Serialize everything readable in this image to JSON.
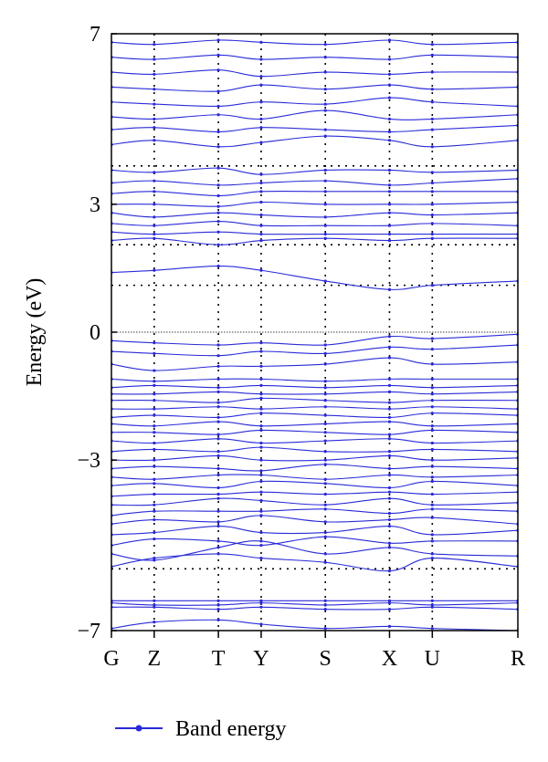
{
  "chart_data": {
    "type": "line",
    "title": "",
    "xlabel": "",
    "ylabel": "Energy (eV)",
    "ylim": [
      -7,
      7
    ],
    "y_ticks": [
      {
        "value": 7,
        "label": "7"
      },
      {
        "value": 3,
        "label": "3"
      },
      {
        "value": 0,
        "label": "0"
      },
      {
        "value": -3,
        "label": "−3"
      },
      {
        "value": -7,
        "label": "−7"
      }
    ],
    "k_points": [
      "G",
      "Z",
      "T",
      "Y",
      "S",
      "X",
      "U",
      "R"
    ],
    "k_positions": [
      0,
      1,
      2.5,
      3.5,
      5,
      6.5,
      7.5,
      9.5
    ],
    "fermi_level": 0,
    "dotted_levels": [
      3.9,
      2.05,
      1.1,
      -5.55
    ],
    "series": [
      {
        "name": "Band energy",
        "color": "#2a2ad8"
      }
    ],
    "legend_position": "bottom-left",
    "bands": [
      [
        -6.95,
        -6.8,
        -6.75,
        -6.85,
        -6.95,
        -6.9,
        -6.95,
        -7.0
      ],
      [
        -6.45,
        -6.45,
        -6.5,
        -6.45,
        -6.5,
        -6.5,
        -6.45,
        -6.5
      ],
      [
        -6.35,
        -6.4,
        -6.4,
        -6.35,
        -6.4,
        -6.35,
        -6.4,
        -6.35
      ],
      [
        -6.3,
        -6.3,
        -6.3,
        -6.3,
        -6.3,
        -6.3,
        -6.3,
        -6.3
      ],
      [
        -5.5,
        -5.3,
        -5.2,
        -5.3,
        -5.4,
        -5.6,
        -5.3,
        -5.5
      ],
      [
        -5.2,
        -5.35,
        -5.05,
        -4.9,
        -5.2,
        -5.05,
        -5.2,
        -5.25
      ],
      [
        -5.0,
        -4.85,
        -4.9,
        -5.0,
        -4.8,
        -4.95,
        -4.9,
        -4.9
      ],
      [
        -4.75,
        -4.7,
        -4.55,
        -4.7,
        -4.7,
        -4.55,
        -4.75,
        -4.65
      ],
      [
        -4.5,
        -4.4,
        -4.45,
        -4.3,
        -4.45,
        -4.4,
        -4.35,
        -4.5
      ],
      [
        -4.3,
        -4.2,
        -4.2,
        -4.2,
        -4.15,
        -4.25,
        -4.15,
        -4.2
      ],
      [
        -4.05,
        -4.05,
        -3.9,
        -3.95,
        -4.05,
        -3.9,
        -4.05,
        -4.0
      ],
      [
        -3.85,
        -3.8,
        -3.8,
        -3.75,
        -3.8,
        -3.75,
        -3.8,
        -3.75
      ],
      [
        -3.6,
        -3.55,
        -3.65,
        -3.5,
        -3.55,
        -3.65,
        -3.5,
        -3.6
      ],
      [
        -3.4,
        -3.45,
        -3.35,
        -3.35,
        -3.45,
        -3.35,
        -3.4,
        -3.35
      ],
      [
        -3.2,
        -3.15,
        -3.2,
        -3.25,
        -3.1,
        -3.2,
        -3.15,
        -3.2
      ],
      [
        -3.0,
        -3.0,
        -2.9,
        -3.0,
        -3.0,
        -2.9,
        -3.0,
        -2.95
      ],
      [
        -2.8,
        -2.75,
        -2.8,
        -2.7,
        -2.8,
        -2.8,
        -2.75,
        -2.8
      ],
      [
        -2.55,
        -2.6,
        -2.5,
        -2.6,
        -2.55,
        -2.5,
        -2.6,
        -2.55
      ],
      [
        -2.35,
        -2.35,
        -2.4,
        -2.3,
        -2.35,
        -2.4,
        -2.3,
        -2.35
      ],
      [
        -2.15,
        -2.2,
        -2.1,
        -2.2,
        -2.15,
        -2.1,
        -2.2,
        -2.15
      ],
      [
        -2.0,
        -1.95,
        -2.0,
        -1.9,
        -1.95,
        -2.0,
        -1.9,
        -1.95
      ],
      [
        -1.8,
        -1.8,
        -1.75,
        -1.8,
        -1.75,
        -1.8,
        -1.75,
        -1.8
      ],
      [
        -1.6,
        -1.6,
        -1.65,
        -1.55,
        -1.6,
        -1.65,
        -1.6,
        -1.6
      ],
      [
        -1.45,
        -1.45,
        -1.4,
        -1.45,
        -1.45,
        -1.4,
        -1.45,
        -1.4
      ],
      [
        -1.3,
        -1.25,
        -1.3,
        -1.25,
        -1.3,
        -1.25,
        -1.3,
        -1.25
      ],
      [
        -1.1,
        -1.15,
        -1.1,
        -1.1,
        -1.15,
        -1.1,
        -1.1,
        -1.1
      ],
      [
        -0.75,
        -0.9,
        -0.8,
        -0.8,
        -0.75,
        -0.6,
        -0.75,
        -0.7
      ],
      [
        -0.45,
        -0.5,
        -0.55,
        -0.45,
        -0.5,
        -0.35,
        -0.4,
        -0.3
      ],
      [
        -0.2,
        -0.25,
        -0.3,
        -0.25,
        -0.3,
        -0.1,
        -0.15,
        -0.05
      ],
      [
        1.4,
        1.45,
        1.55,
        1.45,
        1.2,
        1.0,
        1.1,
        1.2
      ],
      [
        2.15,
        2.2,
        2.05,
        2.15,
        2.2,
        2.15,
        2.2,
        2.2
      ],
      [
        2.35,
        2.3,
        2.35,
        2.3,
        2.3,
        2.3,
        2.3,
        2.3
      ],
      [
        2.55,
        2.5,
        2.6,
        2.5,
        2.5,
        2.5,
        2.55,
        2.5
      ],
      [
        2.8,
        2.7,
        2.8,
        2.75,
        2.7,
        2.8,
        2.75,
        2.8
      ],
      [
        3.0,
        3.0,
        2.95,
        3.05,
        3.0,
        3.0,
        3.0,
        3.05
      ],
      [
        3.25,
        3.3,
        3.2,
        3.3,
        3.3,
        3.3,
        3.3,
        3.3
      ],
      [
        3.5,
        3.55,
        3.45,
        3.5,
        3.55,
        3.45,
        3.5,
        3.6
      ],
      [
        3.8,
        3.75,
        3.85,
        3.7,
        3.8,
        3.8,
        3.75,
        3.8
      ],
      [
        4.4,
        4.5,
        4.35,
        4.45,
        4.6,
        4.5,
        4.35,
        4.5
      ],
      [
        4.75,
        4.8,
        4.7,
        4.8,
        4.75,
        4.7,
        4.75,
        4.85
      ],
      [
        5.05,
        5.0,
        5.1,
        5.0,
        5.2,
        5.0,
        5.0,
        5.1
      ],
      [
        5.4,
        5.35,
        5.3,
        5.4,
        5.35,
        5.5,
        5.4,
        5.3
      ],
      [
        5.75,
        5.7,
        5.65,
        5.8,
        5.7,
        5.8,
        5.7,
        5.75
      ],
      [
        6.1,
        6.05,
        6.15,
        6.0,
        6.1,
        6.05,
        6.1,
        6.1
      ],
      [
        6.45,
        6.4,
        6.5,
        6.4,
        6.45,
        6.4,
        6.5,
        6.45
      ],
      [
        6.8,
        6.75,
        6.85,
        6.8,
        6.75,
        6.85,
        6.75,
        6.8
      ]
    ]
  }
}
